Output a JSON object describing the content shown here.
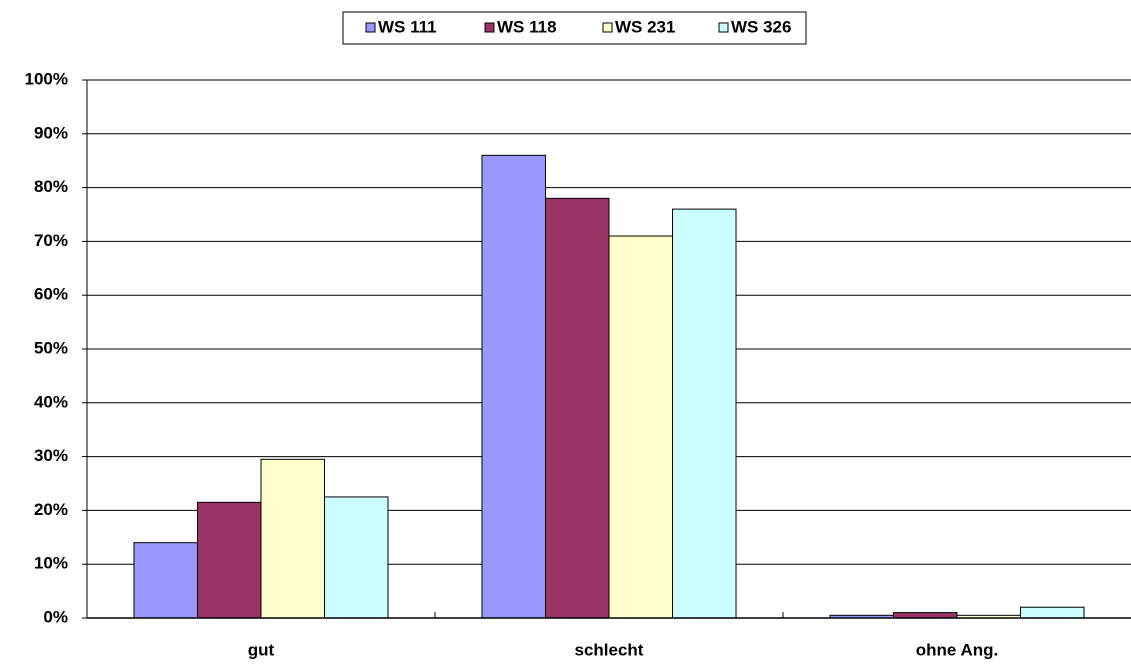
{
  "chart_data": {
    "type": "bar",
    "categories": [
      "gut",
      "schlecht",
      "ohne Ang."
    ],
    "series": [
      {
        "name": "WS 111",
        "color": "#9999ff",
        "values": [
          14,
          86,
          0.5
        ]
      },
      {
        "name": "WS 118",
        "color": "#993366",
        "values": [
          21.5,
          78,
          1
        ]
      },
      {
        "name": "WS 231",
        "color": "#ffffcc",
        "values": [
          29.5,
          71,
          0.5
        ]
      },
      {
        "name": "WS 326",
        "color": "#ccffff",
        "values": [
          22.5,
          76,
          2
        ]
      }
    ],
    "ylim": [
      0,
      100
    ],
    "yticks": [
      {
        "value": 0,
        "label": "0%"
      },
      {
        "value": 10,
        "label": "10%"
      },
      {
        "value": 20,
        "label": "20%"
      },
      {
        "value": 30,
        "label": "30%"
      },
      {
        "value": 40,
        "label": "40%"
      },
      {
        "value": 50,
        "label": "50%"
      },
      {
        "value": 60,
        "label": "60%"
      },
      {
        "value": 70,
        "label": "70%"
      },
      {
        "value": 80,
        "label": "80%"
      },
      {
        "value": 90,
        "label": "90%"
      },
      {
        "value": 100,
        "label": "100%"
      }
    ],
    "grid": true,
    "legend": "top"
  }
}
